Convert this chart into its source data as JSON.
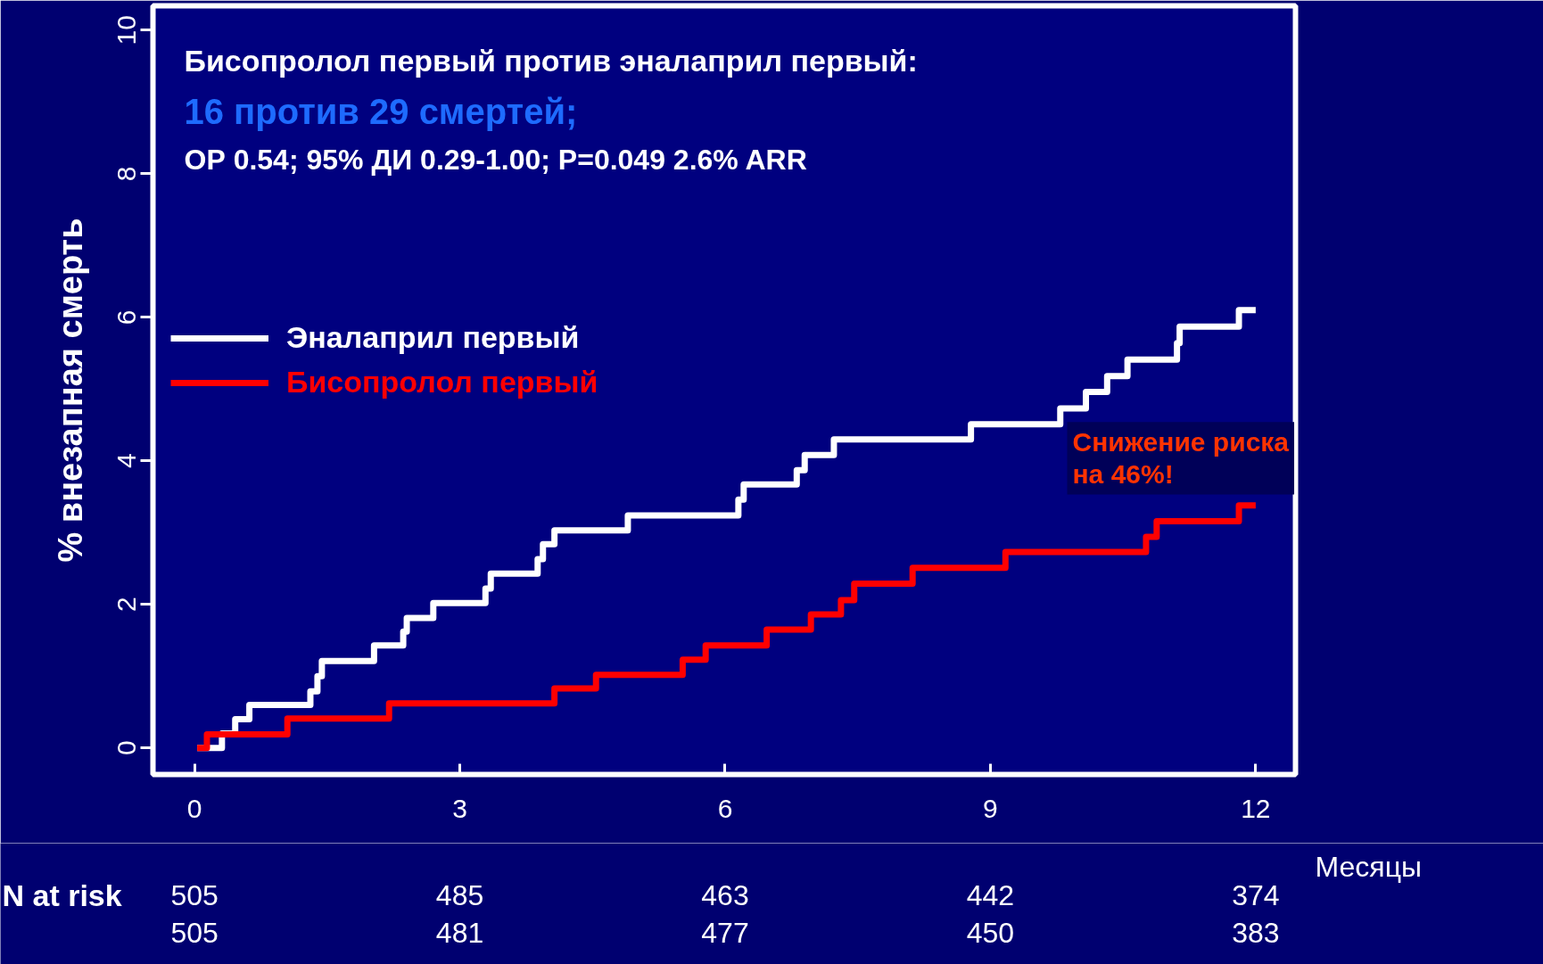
{
  "chart_data": {
    "type": "step",
    "title": "Бисопролол первый против эналаприл первый:",
    "subtitle": "16 против 29 смертей;",
    "xlabel": "Месяцы",
    "ylabel": "% внезапная смерть",
    "xlim": [
      -0.47,
      12.45
    ],
    "ylim": [
      -0.37,
      10.34
    ],
    "xticks": [
      0,
      3,
      6,
      9,
      12
    ],
    "yticks": [
      0,
      2,
      4,
      6,
      8,
      10
    ],
    "grid": false,
    "legend": "left",
    "line_style": "solid",
    "series": [
      {
        "name": "Эналаприл первый",
        "color": "#ffffff",
        "x": [
          0.03,
          0.31,
          0.46,
          0.62,
          1.31,
          1.39,
          1.44,
          2.03,
          2.36,
          2.4,
          2.7,
          3.29,
          3.35,
          3.88,
          3.94,
          4.07,
          4.9,
          6.15,
          6.21,
          6.81,
          6.9,
          7.23,
          8.78,
          9.79,
          10.08,
          10.32,
          10.55,
          11.11,
          11.14,
          11.81,
          12.0
        ],
        "values": [
          0,
          0.2,
          0.4,
          0.6,
          0.79,
          1.0,
          1.21,
          1.43,
          1.62,
          1.81,
          2.02,
          2.22,
          2.43,
          2.63,
          2.84,
          3.03,
          3.24,
          3.46,
          3.67,
          3.87,
          4.08,
          4.3,
          4.51,
          4.73,
          4.96,
          5.18,
          5.41,
          5.64,
          5.87,
          6.1,
          6.1
        ]
      },
      {
        "name": "Бисопролол первый",
        "color": "#ff0000",
        "x": [
          0.03,
          0.14,
          1.05,
          2.2,
          4.07,
          4.54,
          5.52,
          5.78,
          6.47,
          6.97,
          7.31,
          7.46,
          8.12,
          9.17,
          10.76,
          10.88,
          11.81,
          12.0
        ],
        "values": [
          0,
          0.19,
          0.41,
          0.62,
          0.83,
          1.02,
          1.23,
          1.43,
          1.65,
          1.86,
          2.06,
          2.29,
          2.51,
          2.73,
          2.94,
          3.16,
          3.38,
          3.38
        ]
      }
    ],
    "annotations": [
      "ОР 0.54; 95% ДИ 0.29-1.00; P=0.049 2.6% ARR",
      "Снижение риска на 46%!",
      "N at risk",
      "505",
      "485",
      "463",
      "442",
      "374",
      "505",
      "481",
      "477",
      "450",
      "383"
    ]
  }
}
